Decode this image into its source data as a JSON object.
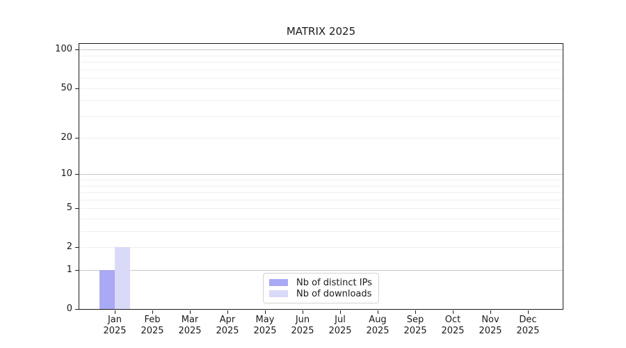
{
  "chart_data": {
    "type": "bar",
    "title": "MATRIX 2025",
    "categories": [
      "Jan",
      "Feb",
      "Mar",
      "Apr",
      "May",
      "Jun",
      "Jul",
      "Aug",
      "Sep",
      "Oct",
      "Nov",
      "Dec"
    ],
    "category_year": "2025",
    "series": [
      {
        "name": "Nb of distinct IPs",
        "color": "#a9a9f5",
        "values": [
          1,
          0,
          0,
          0,
          0,
          0,
          0,
          0,
          0,
          0,
          0,
          0
        ]
      },
      {
        "name": "Nb of downloads",
        "color": "#d9d9f8",
        "values": [
          2,
          0,
          0,
          0,
          0,
          0,
          0,
          0,
          0,
          0,
          0,
          0
        ]
      }
    ],
    "xlabel": "",
    "ylabel": "",
    "y_axis": {
      "scale": "log1p",
      "ylim": [
        0,
        111
      ],
      "ticks": [
        0,
        1,
        2,
        5,
        10,
        20,
        50,
        100
      ],
      "major_gridlines": [
        1,
        10,
        100
      ],
      "minor_gridlines": [
        2,
        3,
        4,
        5,
        6,
        7,
        8,
        9,
        20,
        30,
        40,
        50,
        60,
        70,
        80,
        90
      ]
    },
    "legend": {
      "position": "lower center"
    },
    "grid": true,
    "colors": {
      "background": "#ffffff",
      "major_grid": "#c9c9c9",
      "minor_grid": "#efefef",
      "axis_frame": "#1a1a1a",
      "text": "#1a1a1a"
    }
  }
}
